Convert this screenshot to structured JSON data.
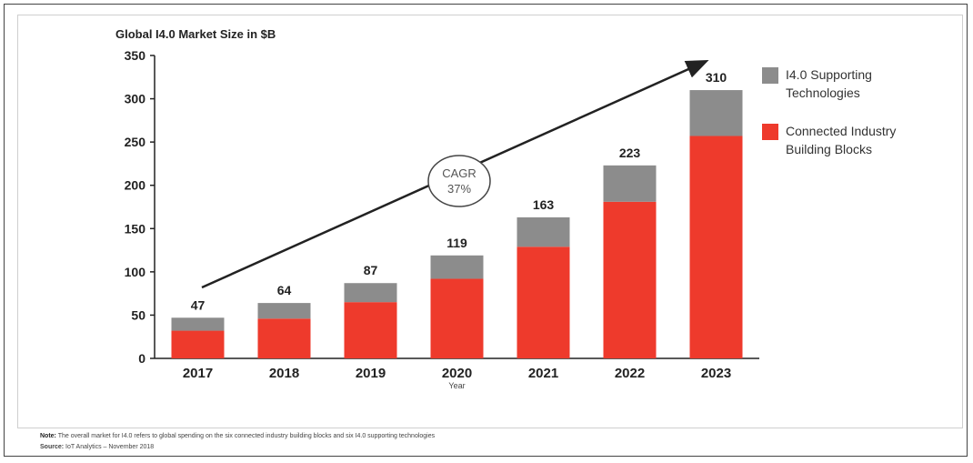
{
  "chart_data": {
    "type": "bar",
    "stacked": true,
    "title": "Global I4.0 Market Size in $B",
    "xlabel": "Year",
    "ylabel": "",
    "ylim": [
      0,
      350
    ],
    "yticks": [
      0,
      50,
      100,
      150,
      200,
      250,
      300,
      350
    ],
    "categories": [
      "2017",
      "2018",
      "2019",
      "2020",
      "2021",
      "2022",
      "2023"
    ],
    "series": [
      {
        "name": "Connected Industry Building Blocks",
        "color": "#ee3a2c",
        "values": [
          32,
          46,
          65,
          92,
          129,
          181,
          257
        ]
      },
      {
        "name": "I4.0 Supporting Technologies",
        "color": "#8c8c8c",
        "values": [
          15,
          18,
          22,
          27,
          34,
          42,
          53
        ]
      }
    ],
    "totals": [
      47,
      64,
      87,
      119,
      163,
      223,
      310
    ],
    "annotation": {
      "line1": "CAGR",
      "line2": "37%"
    },
    "legend_position": "right",
    "grid": false
  },
  "legend": [
    {
      "label_line1": "I4.0 Supporting",
      "label_line2": "Technologies",
      "color": "#8c8c8c"
    },
    {
      "label_line1": "Connected Industry",
      "label_line2": "Building Blocks",
      "color": "#ee3a2c"
    }
  ],
  "footer": {
    "note_label": "Note:",
    "note_text": "The overall market for I4.0 refers to global spending on the six connected industry building blocks and six I4.0 supporting technologies",
    "source_label": "Source:",
    "source_text": "IoT Analytics – November 2018"
  }
}
